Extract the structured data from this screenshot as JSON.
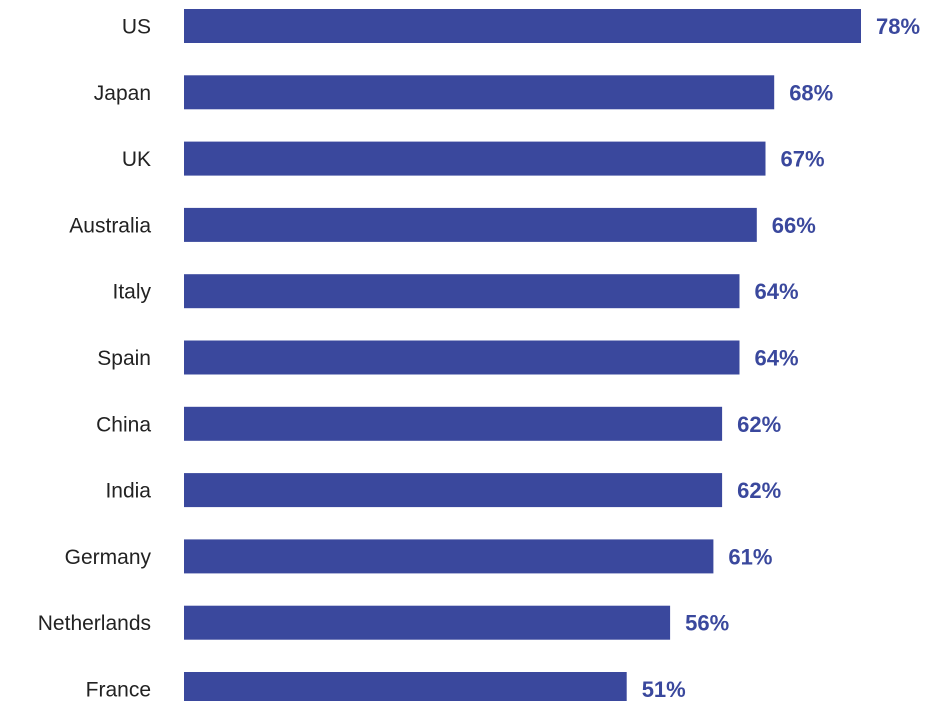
{
  "chart_data": {
    "type": "bar",
    "orientation": "horizontal",
    "categories": [
      "US",
      "Japan",
      "UK",
      "Australia",
      "Italy",
      "Spain",
      "China",
      "India",
      "Germany",
      "Netherlands",
      "France"
    ],
    "values": [
      78,
      68,
      67,
      66,
      64,
      64,
      62,
      62,
      61,
      56,
      51
    ],
    "value_labels": [
      "78%",
      "68%",
      "67%",
      "66%",
      "64%",
      "64%",
      "62%",
      "62%",
      "61%",
      "56%",
      "51%"
    ],
    "unit": "%",
    "title": "",
    "xlabel": "",
    "ylabel": "",
    "xlim": [
      0,
      78
    ],
    "grid": false,
    "legend": "none",
    "bar_color": "#3a489d",
    "label_color": "#3a489d"
  }
}
